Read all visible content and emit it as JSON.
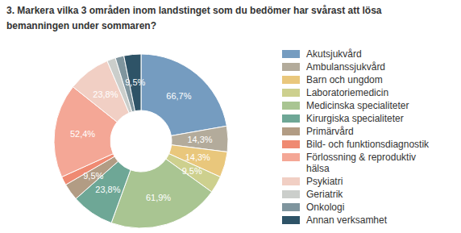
{
  "chart_data": {
    "type": "pie",
    "title": "3. Markera vilka 3 områden inom landstinget som du bedömer har svårast att lösa bemanningen under sommaren?",
    "categories": [
      "Akutsjukvård",
      "Ambulanssjukvård",
      "Barn och ungdom",
      "Laboratoriemedicin",
      "Medicinska specialiteter",
      "Kirurgiska specialiteter",
      "Primärvård",
      "Bild- och funktionsdiagnostik",
      "Förlossning & reproduktiv hälsa",
      "Psykiatri",
      "Geriatrik",
      "Onkologi",
      "Annan verksamhet"
    ],
    "values": [
      66.7,
      14.3,
      14.3,
      9.5,
      61.9,
      23.8,
      9.5,
      4.8,
      52.4,
      23.8,
      4.8,
      4.8,
      9.5
    ],
    "value_labels": [
      "66,7%",
      "14,3%",
      "14,3%",
      "9,5%",
      "61,9%",
      "23,8%",
      "9,5%",
      null,
      "52,4%",
      "23,8%",
      null,
      null,
      "9,5%"
    ],
    "colors": [
      "#759cc0",
      "#b3ab9b",
      "#e9c77c",
      "#cdd08e",
      "#a9c592",
      "#6ea796",
      "#b29c84",
      "#ef8a72",
      "#f4a796",
      "#f1cfc4",
      "#cbcecb",
      "#7f959e",
      "#2e5367"
    ],
    "data_labels": true,
    "legend": "right"
  }
}
